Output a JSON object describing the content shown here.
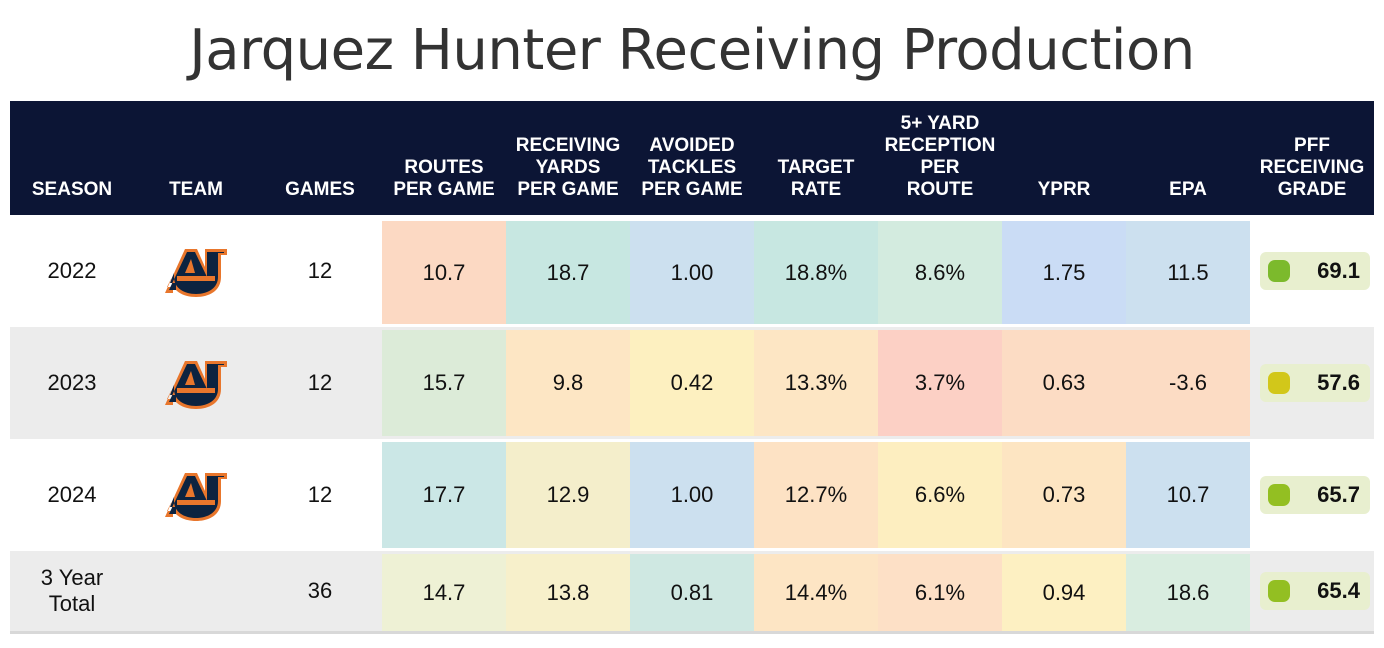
{
  "title": "Jarquez Hunter Receiving Production",
  "columns": [
    "SEASON",
    "TEAM",
    "GAMES",
    "ROUTES PER GAME",
    "RECEIVING YARDS PER GAME",
    "AVOIDED TACKLES PER GAME",
    "TARGET RATE",
    "5+ YARD RECEPTION PER ROUTE",
    "YPRR",
    "EPA",
    "PFF RECEIVING GRADE"
  ],
  "header_lines": [
    [
      "SEASON"
    ],
    [
      "TEAM"
    ],
    [
      "GAMES"
    ],
    [
      "ROUTES",
      "PER GAME"
    ],
    [
      "RECEIVING",
      "YARDS",
      "PER GAME"
    ],
    [
      "AVOIDED",
      "TACKLES",
      "PER GAME"
    ],
    [
      "TARGET",
      "RATE"
    ],
    [
      "5+ YARD",
      "RECEPTION",
      "PER",
      "ROUTE"
    ],
    [
      "YPRR"
    ],
    [
      "EPA"
    ],
    [
      "PFF",
      "RECEIVING",
      "GRADE"
    ]
  ],
  "rows": [
    {
      "season": "2022",
      "team_logo": "auburn-logo-icon",
      "games": "12",
      "metrics": [
        "10.7",
        "18.7",
        "1.00",
        "18.8%",
        "8.6%",
        "1.75",
        "11.5"
      ],
      "metric_colors": [
        "#fcd9c3",
        "#c7e7e1",
        "#cce0ef",
        "#c7e7e1",
        "#d3ebdf",
        "#cadcf5",
        "#cce0ef"
      ],
      "grade": "69.1",
      "grade_color": "#7cba2c"
    },
    {
      "season": "2023",
      "team_logo": "auburn-logo-icon",
      "games": "12",
      "metrics": [
        "15.7",
        "9.8",
        "0.42",
        "13.3%",
        "3.7%",
        "0.63",
        "-3.6"
      ],
      "metric_colors": [
        "#dcebd8",
        "#fde6c4",
        "#fdf0c0",
        "#fde6c4",
        "#fcd0c5",
        "#fcdcc4",
        "#fcdcc4"
      ],
      "grade": "57.6",
      "grade_color": "#d2c71a"
    },
    {
      "season": "2024",
      "team_logo": "auburn-logo-icon",
      "games": "12",
      "metrics": [
        "17.7",
        "12.9",
        "1.00",
        "12.7%",
        "6.6%",
        "0.73",
        "10.7"
      ],
      "metric_colors": [
        "#cbe7e6",
        "#f4eecb",
        "#cce0ef",
        "#fde2c4",
        "#fdeec0",
        "#fde5c2",
        "#cce0ef"
      ],
      "grade": "65.7",
      "grade_color": "#93bf22"
    },
    {
      "season": "3 Year Total",
      "team_logo": "",
      "games": "36",
      "metrics": [
        "14.7",
        "13.8",
        "0.81",
        "14.4%",
        "6.1%",
        "0.94",
        "18.6"
      ],
      "metric_colors": [
        "#eef1d5",
        "#f7f0cb",
        "#cfe8e2",
        "#fde5c4",
        "#fde0c6",
        "#fdf0c2",
        "#d9ede0"
      ],
      "grade": "65.4",
      "grade_color": "#93bf22"
    }
  ],
  "colors": {
    "header_bg": "#0c1535",
    "title": "#333333",
    "alt_row": "#ececec",
    "grade_pill": "#e8efcf"
  },
  "chart_data": {
    "type": "table",
    "title": "Jarquez Hunter Receiving Production",
    "columns": [
      "SEASON",
      "TEAM",
      "GAMES",
      "ROUTES PER GAME",
      "RECEIVING YARDS PER GAME",
      "AVOIDED TACKLES PER GAME",
      "TARGET RATE",
      "5+ YARD RECEPTION PER ROUTE",
      "YPRR",
      "EPA",
      "PFF RECEIVING GRADE"
    ],
    "rows": [
      [
        "2022",
        "Auburn",
        12,
        10.7,
        18.7,
        1.0,
        "18.8%",
        "8.6%",
        1.75,
        11.5,
        69.1
      ],
      [
        "2023",
        "Auburn",
        12,
        15.7,
        9.8,
        0.42,
        "13.3%",
        "3.7%",
        0.63,
        -3.6,
        57.6
      ],
      [
        "2024",
        "Auburn",
        12,
        17.7,
        12.9,
        1.0,
        "12.7%",
        "6.6%",
        0.73,
        10.7,
        65.7
      ],
      [
        "3 Year Total",
        "",
        36,
        14.7,
        13.8,
        0.81,
        "14.4%",
        "6.1%",
        0.94,
        18.6,
        65.4
      ]
    ]
  }
}
